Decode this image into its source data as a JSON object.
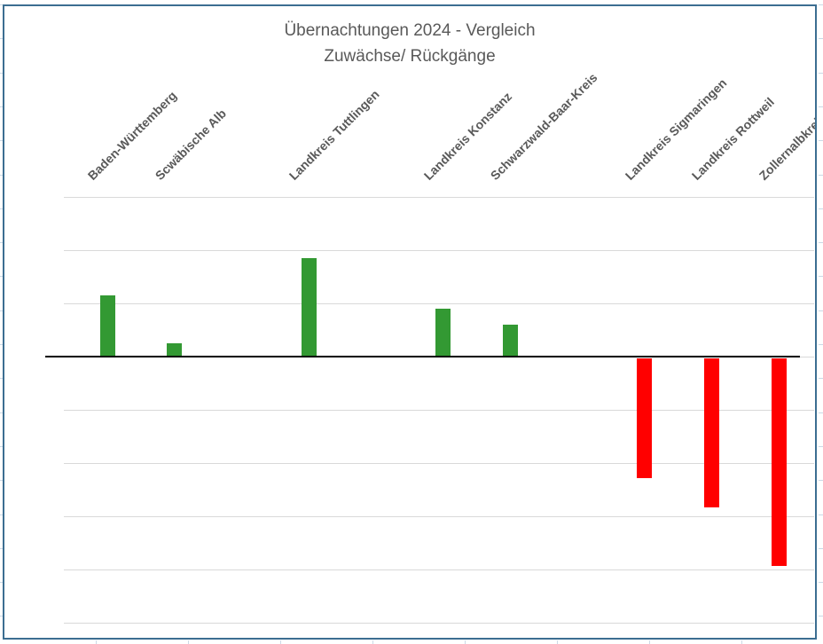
{
  "chart_data": {
    "type": "bar",
    "title": "Übernachtungen 2024 - Vergleich",
    "subtitle": "Zuwächse/ Rückgänge",
    "categories": [
      "Baden-Württemberg",
      "Scwäbische Alb",
      "",
      "Landkreis Tuttlingen",
      "",
      "Landkreis Konstanz",
      "Schwarzwald-Baar-Kreis",
      "",
      "Landkreis Sigmaringen",
      "Landkreis Rottweil",
      "Zollernalbkreis"
    ],
    "values": [
      1.15,
      0.25,
      null,
      1.85,
      null,
      0.9,
      0.6,
      null,
      -2.25,
      -2.8,
      -3.9
    ],
    "value_axis": {
      "labels_shown": false,
      "ylim": [
        -5,
        3
      ],
      "gridline_step": 1
    },
    "grid": true,
    "legend": "none",
    "positive_color": "#339933",
    "negative_color": "#ff0000"
  },
  "colors": {
    "frame_border": "#3c6e91",
    "gridline": "#d9d9d9",
    "axis_line": "#000000",
    "text": "#595959",
    "sheet_gridline": "#cbd9e6"
  }
}
